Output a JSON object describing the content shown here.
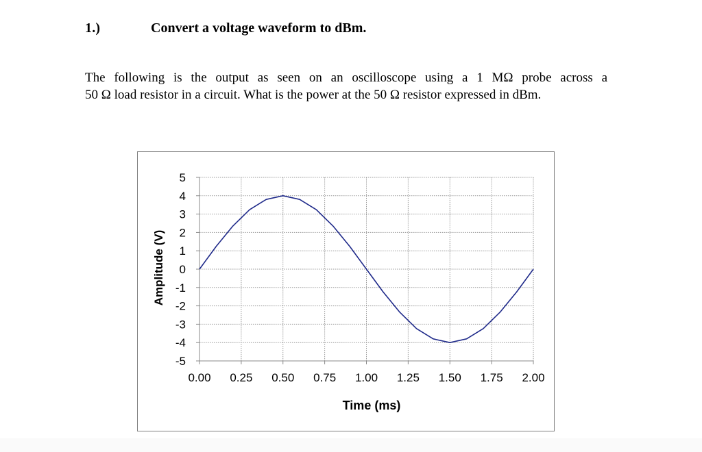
{
  "question": {
    "number": "1.)",
    "title": "Convert a voltage waveform to dBm.",
    "body_line1": "The following is the output as seen on an oscilloscope using a 1 MΩ probe across a",
    "body_line2": "50 Ω load resistor in a circuit.  What is the power at the 50 Ω resistor expressed in dBm."
  },
  "chart_data": {
    "type": "line",
    "title": "",
    "xlabel": "Time (ms)",
    "ylabel": "Amplitude (V)",
    "xlim": [
      0,
      2
    ],
    "ylim": [
      -5,
      5
    ],
    "x_ticks": [
      "0.00",
      "0.25",
      "0.50",
      "0.75",
      "1.00",
      "1.25",
      "1.50",
      "1.75",
      "2.00"
    ],
    "y_ticks": [
      "5",
      "4",
      "3",
      "2",
      "1",
      "0",
      "-1",
      "-2",
      "-3",
      "-4",
      "-5"
    ],
    "grid": true,
    "legend": "none",
    "series": [
      {
        "color": "#1f2a8a",
        "x": [
          0.0,
          0.1,
          0.2,
          0.3,
          0.4,
          0.5,
          0.6,
          0.7,
          0.8,
          0.9,
          1.0,
          1.1,
          1.2,
          1.3,
          1.4,
          1.5,
          1.6,
          1.7,
          1.8,
          1.9,
          2.0
        ],
        "y": [
          0.0,
          1.24,
          2.35,
          3.24,
          3.8,
          4.0,
          3.8,
          3.24,
          2.35,
          1.24,
          0.0,
          -1.24,
          -2.35,
          -3.24,
          -3.8,
          -4.0,
          -3.8,
          -3.24,
          -2.35,
          -1.24,
          0.0
        ]
      }
    ]
  }
}
